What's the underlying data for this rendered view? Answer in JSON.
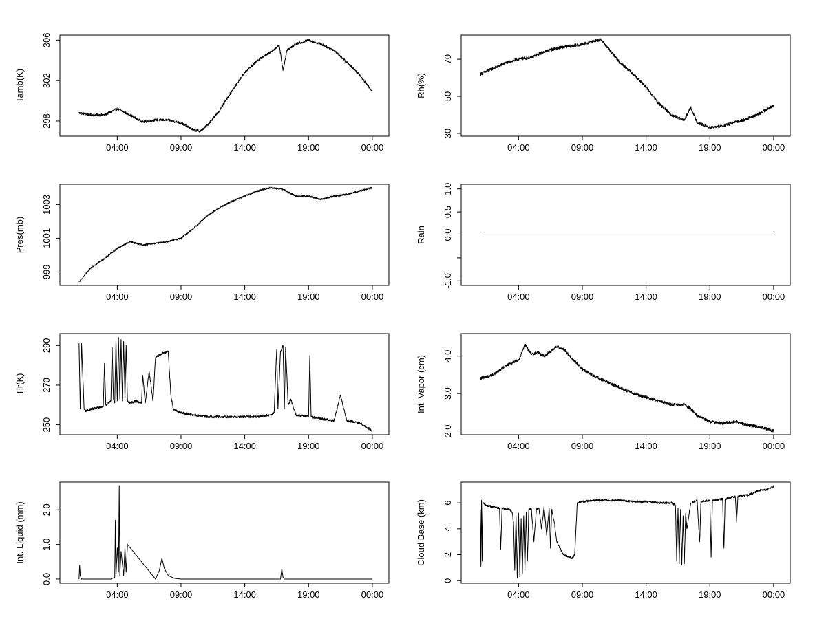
{
  "chart_data": [
    {
      "type": "line",
      "ylabel": "Tamb(K)",
      "xlabel": "",
      "xticks": [
        "04:00",
        "09:00",
        "14:00",
        "19:00",
        "00:00"
      ],
      "xtick_hours": [
        4,
        9,
        14,
        19,
        24
      ],
      "xlim": [
        -0.5,
        25.3
      ],
      "yticks": [
        298,
        302,
        306
      ],
      "ylim": [
        296.5,
        306.5
      ],
      "series": [
        {
          "name": "Tamb",
          "x": [
            1,
            2,
            3,
            4,
            5,
            6,
            7,
            8,
            9,
            10,
            10.5,
            11,
            12,
            13,
            14,
            15,
            16,
            16.7,
            17,
            17.3,
            18,
            19,
            20,
            21,
            22,
            23,
            24
          ],
          "y": [
            298.8,
            298.6,
            298.6,
            299.2,
            298.6,
            297.9,
            298.1,
            298.1,
            297.8,
            297.1,
            297.0,
            297.5,
            299.0,
            301.0,
            302.8,
            304.0,
            304.8,
            305.5,
            303.0,
            305.0,
            305.6,
            306.0,
            305.6,
            305.0,
            303.8,
            302.6,
            300.9
          ],
          "noise": 0.12
        }
      ]
    },
    {
      "type": "line",
      "ylabel": "Rh(%)",
      "xlabel": "",
      "xticks": [
        "04:00",
        "09:00",
        "14:00",
        "19:00",
        "00:00"
      ],
      "xtick_hours": [
        4,
        9,
        14,
        19,
        24
      ],
      "xlim": [
        -0.5,
        25.3
      ],
      "yticks": [
        30,
        50,
        70
      ],
      "ylim": [
        28.5,
        83
      ],
      "series": [
        {
          "name": "Rh",
          "x": [
            1,
            2,
            3,
            4,
            5,
            6,
            7,
            8,
            9,
            10,
            10.5,
            11,
            12,
            13,
            14,
            15,
            16,
            17,
            17.5,
            18,
            19,
            20,
            21,
            22,
            23,
            24
          ],
          "y": [
            62,
            65,
            68,
            70,
            71,
            74,
            76,
            77,
            78,
            80,
            80.5,
            76,
            68,
            62,
            55,
            46,
            40,
            37,
            44,
            36,
            33,
            34,
            36,
            38,
            41,
            45
          ],
          "noise": 0.8
        }
      ]
    },
    {
      "type": "line",
      "ylabel": "Pres(mb)",
      "xlabel": "",
      "xticks": [
        "04:00",
        "09:00",
        "14:00",
        "19:00",
        "00:00"
      ],
      "xtick_hours": [
        4,
        9,
        14,
        19,
        24
      ],
      "xlim": [
        -0.5,
        25.3
      ],
      "yticks": [
        999,
        1001,
        1003
      ],
      "ylim": [
        998.2,
        1004.2
      ],
      "series": [
        {
          "name": "Pres",
          "x": [
            1,
            2,
            3,
            4,
            5,
            6,
            7,
            8,
            9,
            10,
            11,
            12,
            13,
            14,
            15,
            16,
            17,
            18,
            19,
            20,
            21,
            22,
            23,
            24
          ],
          "y": [
            998.4,
            999.3,
            999.8,
            1000.4,
            1000.8,
            1000.6,
            1000.7,
            1000.8,
            1001.0,
            1001.6,
            1002.3,
            1002.8,
            1003.2,
            1003.5,
            1003.8,
            1004.0,
            1003.9,
            1003.5,
            1003.5,
            1003.3,
            1003.5,
            1003.6,
            1003.8,
            1004.0
          ],
          "noise": 0.05
        }
      ]
    },
    {
      "type": "line",
      "ylabel": "Rain",
      "xlabel": "",
      "xticks": [
        "04:00",
        "09:00",
        "14:00",
        "19:00",
        "00:00"
      ],
      "xtick_hours": [
        4,
        9,
        14,
        19,
        24
      ],
      "xlim": [
        -0.5,
        25.3
      ],
      "yticks": [
        -1.0,
        -0.5,
        0.0,
        0.5,
        1.0
      ],
      "ytick_labels": [
        "-1.0",
        "",
        "0.0",
        "0.5",
        "1.0"
      ],
      "ylim": [
        -1.1,
        1.1
      ],
      "series": [
        {
          "name": "Rain",
          "x": [
            1,
            24
          ],
          "y": [
            0,
            0
          ],
          "noise": 0
        }
      ]
    },
    {
      "type": "line",
      "ylabel": "Tir(K)",
      "xlabel": "",
      "xticks": [
        "04:00",
        "09:00",
        "14:00",
        "19:00",
        "00:00"
      ],
      "xtick_hours": [
        4,
        9,
        14,
        19,
        24
      ],
      "xlim": [
        -0.5,
        25.3
      ],
      "yticks": [
        250,
        270,
        290
      ],
      "ylim": [
        245,
        296
      ],
      "series": [
        {
          "name": "Tir",
          "x": [
            1,
            1.1,
            1.2,
            1.4,
            1.5,
            2,
            2.9,
            3,
            3.1,
            3.5,
            3.6,
            3.7,
            3.8,
            3.9,
            4.0,
            4.1,
            4.2,
            4.3,
            4.4,
            4.5,
            4.6,
            4.7,
            4.8,
            5,
            5.5,
            5.9,
            6.0,
            6.2,
            6.5,
            6.8,
            7,
            7.5,
            8,
            8.2,
            8.4,
            8.7,
            9,
            10,
            11,
            12,
            13,
            14,
            15,
            16,
            16.3,
            16.5,
            16.6,
            16.8,
            17,
            17.1,
            17.2,
            17.4,
            17.6,
            18,
            19,
            19.1,
            19.2,
            20,
            21,
            21.5,
            22,
            23,
            24
          ],
          "y": [
            291,
            258,
            291,
            258,
            257,
            258,
            259,
            281,
            260,
            262,
            289,
            263,
            261,
            293,
            262,
            294,
            263,
            293,
            262,
            292,
            263,
            290,
            262,
            261,
            262,
            261,
            275,
            261,
            277,
            262,
            284,
            286,
            287,
            265,
            258,
            257,
            256,
            255,
            254,
            254,
            254,
            254,
            254,
            255,
            256,
            288,
            258,
            287,
            290,
            258,
            289,
            260,
            263,
            255,
            254,
            285,
            254,
            253,
            252,
            265,
            252,
            251,
            247
          ],
          "noise": 0.6
        }
      ]
    },
    {
      "type": "line",
      "ylabel": "Int. Vapor (cm)",
      "xlabel": "",
      "xticks": [
        "04:00",
        "09:00",
        "14:00",
        "19:00",
        "00:00"
      ],
      "xtick_hours": [
        4,
        9,
        14,
        19,
        24
      ],
      "xlim": [
        -0.5,
        25.3
      ],
      "yticks": [
        2.0,
        3.0,
        4.0
      ],
      "ytick_labels": [
        "2.0",
        "3.0",
        "4.0"
      ],
      "ylim": [
        1.9,
        4.6
      ],
      "series": [
        {
          "name": "Int. Vapor",
          "x": [
            1,
            2,
            3,
            4,
            4.5,
            5,
            5.5,
            6,
            7,
            7.5,
            8,
            9,
            10,
            11,
            12,
            13,
            14,
            15,
            16,
            17,
            17.5,
            18,
            19,
            20,
            21,
            22,
            23,
            24
          ],
          "y": [
            3.4,
            3.5,
            3.75,
            3.9,
            4.3,
            4.05,
            4.1,
            4.0,
            4.25,
            4.2,
            4.0,
            3.65,
            3.45,
            3.3,
            3.15,
            3.0,
            2.9,
            2.8,
            2.7,
            2.7,
            2.6,
            2.4,
            2.25,
            2.2,
            2.25,
            2.15,
            2.1,
            2.0
          ],
          "noise": 0.04
        }
      ]
    },
    {
      "type": "line",
      "ylabel": "Int. Liquid (mm)",
      "xlabel": "",
      "xticks": [
        "04:00",
        "09:00",
        "14:00",
        "19:00",
        "00:00"
      ],
      "xtick_hours": [
        4,
        9,
        14,
        19,
        24
      ],
      "xlim": [
        -0.5,
        25.3
      ],
      "yticks": [
        0.0,
        1.0,
        2.0
      ],
      "ytick_labels": [
        "0.0",
        "1.0",
        "2.0"
      ],
      "ylim": [
        -0.12,
        2.8
      ],
      "series": [
        {
          "name": "Int. Liquid",
          "x": [
            1,
            1.05,
            1.1,
            1.2,
            3.5,
            3.8,
            3.85,
            3.9,
            4.0,
            4.1,
            4.15,
            4.2,
            4.3,
            4.5,
            4.6,
            4.7,
            4.8,
            7,
            7.3,
            7.5,
            7.7,
            8,
            8.5,
            9,
            16.8,
            16.9,
            17.0,
            17.1,
            24
          ],
          "y": [
            0.0,
            0.4,
            0.1,
            0.0,
            0.0,
            0.05,
            1.7,
            0.1,
            0.9,
            0.2,
            2.7,
            0.1,
            0.8,
            0.1,
            0.9,
            0.2,
            1.0,
            0.0,
            0.25,
            0.6,
            0.3,
            0.1,
            0.02,
            0.0,
            0.0,
            0.3,
            0.05,
            0.0,
            0.0
          ],
          "noise": 0
        }
      ]
    },
    {
      "type": "line",
      "ylabel": "Cloud Base (km)",
      "xlabel": "",
      "xticks": [
        "04:00",
        "09:00",
        "14:00",
        "19:00",
        "00:00"
      ],
      "xtick_hours": [
        4,
        9,
        14,
        19,
        24
      ],
      "xlim": [
        -0.5,
        25.3
      ],
      "yticks": [
        0,
        2,
        4,
        6
      ],
      "ylim": [
        -0.2,
        7.6
      ],
      "series": [
        {
          "name": "Cloud Base",
          "x": [
            1,
            1.05,
            1.1,
            1.15,
            1.2,
            1.5,
            2,
            2.5,
            2.6,
            2.7,
            3,
            3.3,
            3.5,
            3.6,
            3.7,
            3.8,
            3.9,
            4.0,
            4.1,
            4.2,
            4.3,
            4.4,
            4.5,
            4.6,
            4.7,
            4.8,
            5,
            5.2,
            5.4,
            5.6,
            5.8,
            6,
            6.2,
            6.4,
            6.5,
            6.6,
            6.8,
            7,
            7.5,
            8,
            8.2,
            8.4,
            8.6,
            9,
            10,
            11,
            12,
            13,
            14,
            15,
            16,
            16.3,
            16.4,
            16.5,
            16.6,
            16.7,
            16.8,
            16.9,
            17.0,
            17.1,
            17.2,
            17.5,
            18,
            18.2,
            18.3,
            19,
            19.1,
            19.2,
            20,
            20.1,
            20.2,
            21,
            21.1,
            21.2,
            22,
            22.5,
            23,
            23.5,
            24
          ],
          "y": [
            5.5,
            1.1,
            6.2,
            1.5,
            6.0,
            5.8,
            5.7,
            5.6,
            2.4,
            5.6,
            5.5,
            5.5,
            5.3,
            4.5,
            0.8,
            5.0,
            0.2,
            5.2,
            0.3,
            4.8,
            0.5,
            5.0,
            0.8,
            5.3,
            1.5,
            5.5,
            5.6,
            3.0,
            5.5,
            5.6,
            4.0,
            5.7,
            3.5,
            5.6,
            2.5,
            5.5,
            4.5,
            3.0,
            2.0,
            1.8,
            1.7,
            2.0,
            6.0,
            6.1,
            6.2,
            6.2,
            6.2,
            6.1,
            6.1,
            6.0,
            6.0,
            5.8,
            1.5,
            5.6,
            1.3,
            5.5,
            1.2,
            5.0,
            1.3,
            5.2,
            4.0,
            6.0,
            6.2,
            3.0,
            6.1,
            6.2,
            1.8,
            6.2,
            6.3,
            2.5,
            6.3,
            6.5,
            4.5,
            6.5,
            6.6,
            6.8,
            7.0,
            7.0,
            7.3
          ],
          "noise": 0.08
        }
      ]
    }
  ]
}
